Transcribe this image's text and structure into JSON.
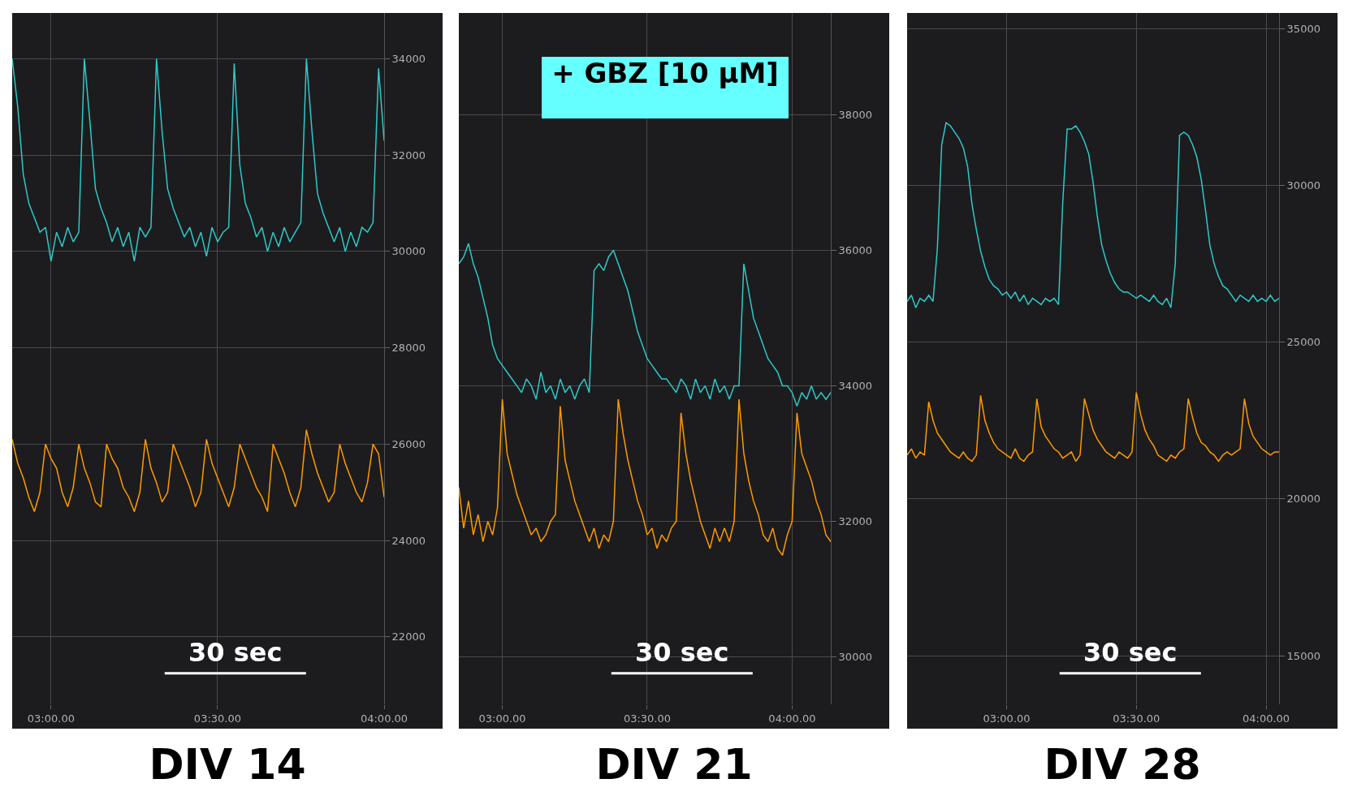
{
  "chart_data": [
    {
      "type": "line",
      "title": "DIV 14",
      "annotations": [
        "30 sec"
      ],
      "categories": [
        null,
        null,
        null,
        null,
        null,
        null,
        null,
        "03:00.00",
        null,
        null,
        null,
        null,
        null,
        null,
        null,
        null,
        null,
        null,
        null,
        null,
        null,
        null,
        null,
        null,
        null,
        null,
        null,
        null,
        null,
        null,
        null,
        null,
        null,
        null,
        null,
        null,
        null,
        "03:30.00",
        null,
        null,
        null,
        null,
        null,
        null,
        null,
        null,
        null,
        null,
        null,
        null,
        null,
        null,
        null,
        null,
        null,
        null,
        null,
        null,
        null,
        null,
        null,
        null,
        null,
        null,
        null,
        null,
        null,
        "04:00.00"
      ],
      "ylim": [
        20600,
        34950
      ],
      "yticks": [
        22000,
        24000,
        26000,
        28000,
        30000,
        32000,
        34000
      ],
      "grid": true,
      "series": [
        {
          "color": "#2ec9c9",
          "values": [
            34000,
            33000,
            31600,
            31000,
            30700,
            30400,
            30500,
            29800,
            30400,
            30100,
            30500,
            30200,
            30400,
            34000,
            32700,
            31300,
            30900,
            30600,
            30200,
            30500,
            30100,
            30400,
            29800,
            30500,
            30300,
            30500,
            34000,
            32500,
            31300,
            30900,
            30600,
            30300,
            30500,
            30100,
            30400,
            29900,
            30500,
            30200,
            30400,
            30500,
            33900,
            31800,
            31000,
            30700,
            30300,
            30500,
            30000,
            30400,
            30100,
            30500,
            30200,
            30400,
            30600,
            34000,
            32500,
            31200,
            30800,
            30500,
            30200,
            30500,
            30000,
            30400,
            30100,
            30500,
            30400,
            30600,
            33800,
            32300
          ]
        },
        {
          "color": "#ff9a00",
          "values": [
            26100,
            25600,
            25300,
            24900,
            24600,
            25000,
            26000,
            25700,
            25500,
            25000,
            24700,
            25100,
            26000,
            25500,
            25200,
            24800,
            24700,
            26000,
            25700,
            25500,
            25100,
            24900,
            24600,
            25000,
            26100,
            25500,
            25200,
            24800,
            25000,
            26000,
            25700,
            25400,
            25100,
            24700,
            25000,
            26100,
            25600,
            25300,
            25000,
            24700,
            25100,
            26000,
            25700,
            25400,
            25100,
            24900,
            24600,
            26000,
            25700,
            25400,
            25000,
            24700,
            25100,
            26300,
            25800,
            25400,
            25100,
            24800,
            25000,
            26000,
            25600,
            25300,
            25000,
            24800,
            25200,
            26000,
            25800,
            24900
          ]
        }
      ]
    },
    {
      "type": "line",
      "title": "DIV 21",
      "annotations": [
        "30 sec",
        "+ GBZ [10 µM]"
      ],
      "categories": [
        null,
        null,
        null,
        null,
        null,
        null,
        null,
        null,
        null,
        "03:00.00",
        null,
        null,
        null,
        null,
        null,
        null,
        null,
        null,
        null,
        null,
        null,
        null,
        null,
        null,
        null,
        null,
        null,
        null,
        null,
        null,
        null,
        null,
        null,
        null,
        null,
        null,
        null,
        null,
        null,
        "03:30.00",
        null,
        null,
        null,
        null,
        null,
        null,
        null,
        null,
        null,
        null,
        null,
        null,
        null,
        null,
        null,
        null,
        null,
        null,
        null,
        null,
        null,
        null,
        null,
        null,
        null,
        null,
        null,
        null,
        null,
        "04:00.00",
        null,
        null,
        null,
        null,
        null,
        null,
        null,
        null
      ],
      "ylim": [
        29300,
        39500
      ],
      "yticks": [
        30000,
        32000,
        34000,
        36000,
        38000
      ],
      "grid": true,
      "series": [
        {
          "color": "#2ec9c9",
          "values": [
            35800,
            35900,
            36100,
            35800,
            35600,
            35300,
            35000,
            34600,
            34400,
            34300,
            34200,
            34100,
            34000,
            33900,
            34100,
            34000,
            33800,
            34200,
            33900,
            34000,
            33800,
            34100,
            33900,
            34000,
            33800,
            34000,
            34100,
            33900,
            35700,
            35800,
            35700,
            35900,
            36000,
            35800,
            35600,
            35400,
            35100,
            34800,
            34600,
            34400,
            34300,
            34200,
            34100,
            34100,
            34000,
            33900,
            34100,
            34000,
            33800,
            34100,
            33900,
            34000,
            33800,
            34100,
            33900,
            34000,
            33800,
            34000,
            34000,
            35800,
            35400,
            35000,
            34800,
            34600,
            34400,
            34300,
            34200,
            34000,
            34000,
            33900,
            33700,
            33900,
            33800,
            34000,
            33800,
            33900,
            33800,
            33900
          ]
        },
        {
          "color": "#ff9a00",
          "values": [
            32500,
            31900,
            32300,
            31800,
            32100,
            31700,
            32000,
            31800,
            32200,
            33800,
            33000,
            32700,
            32400,
            32200,
            32000,
            31800,
            31900,
            31700,
            31800,
            32000,
            32100,
            33700,
            32900,
            32600,
            32300,
            32100,
            31900,
            31700,
            31900,
            31600,
            31800,
            31700,
            32000,
            33800,
            33300,
            32900,
            32600,
            32300,
            32100,
            31800,
            31900,
            31600,
            31800,
            31700,
            31900,
            32000,
            33600,
            33000,
            32600,
            32300,
            32000,
            31800,
            31600,
            31900,
            31700,
            31900,
            31700,
            32000,
            33800,
            33000,
            32600,
            32300,
            32100,
            31800,
            31700,
            31900,
            31600,
            31500,
            31800,
            32000,
            33600,
            33000,
            32800,
            32600,
            32300,
            32100,
            31800,
            31700
          ]
        }
      ]
    },
    {
      "type": "line",
      "title": "DIV 28",
      "annotations": [
        "30 sec"
      ],
      "categories": [
        null,
        null,
        null,
        null,
        null,
        null,
        null,
        null,
        null,
        null,
        null,
        null,
        null,
        null,
        null,
        null,
        null,
        null,
        null,
        null,
        null,
        null,
        null,
        "03:00.00",
        null,
        null,
        null,
        null,
        null,
        null,
        null,
        null,
        null,
        null,
        null,
        null,
        null,
        null,
        null,
        null,
        null,
        null,
        null,
        null,
        null,
        null,
        null,
        null,
        null,
        null,
        null,
        null,
        null,
        "03:30.00",
        null,
        null,
        null,
        null,
        null,
        null,
        null,
        null,
        null,
        null,
        null,
        null,
        null,
        null,
        null,
        null,
        null,
        null,
        null,
        null,
        null,
        null,
        null,
        null,
        null,
        null,
        null,
        null,
        null,
        "04:00.00",
        null,
        null,
        null
      ],
      "ylim": [
        13450,
        35500
      ],
      "yticks": [
        15000,
        20000,
        25000,
        30000,
        35000
      ],
      "grid": true,
      "series": [
        {
          "color": "#2ec9c9",
          "values": [
            26300,
            26500,
            26100,
            26400,
            26300,
            26500,
            26300,
            28000,
            31300,
            32000,
            31900,
            31700,
            31500,
            31200,
            30600,
            29400,
            28600,
            27900,
            27400,
            27000,
            26800,
            26700,
            26500,
            26600,
            26400,
            26600,
            26300,
            26500,
            26200,
            26400,
            26300,
            26200,
            26400,
            26300,
            26400,
            26200,
            29500,
            31800,
            31800,
            31900,
            31700,
            31400,
            31000,
            30100,
            29000,
            28100,
            27600,
            27200,
            26900,
            26700,
            26600,
            26600,
            26500,
            26400,
            26500,
            26400,
            26300,
            26500,
            26300,
            26200,
            26400,
            26100,
            27500,
            31600,
            31700,
            31600,
            31300,
            30900,
            30200,
            29200,
            28100,
            27500,
            27100,
            26800,
            26700,
            26500,
            26300,
            26500,
            26400,
            26300,
            26500,
            26300,
            26400,
            26300,
            26500,
            26300,
            26400
          ]
        },
        {
          "color": "#ff9a00",
          "values": [
            21400,
            21600,
            21300,
            21500,
            21400,
            23100,
            22500,
            22100,
            21900,
            21700,
            21500,
            21400,
            21300,
            21500,
            21300,
            21200,
            21400,
            23300,
            22500,
            22100,
            21800,
            21600,
            21500,
            21400,
            21300,
            21600,
            21300,
            21200,
            21400,
            21500,
            23200,
            22300,
            22000,
            21800,
            21600,
            21500,
            21300,
            21400,
            21500,
            21200,
            21400,
            23200,
            22700,
            22200,
            21900,
            21700,
            21500,
            21400,
            21300,
            21500,
            21400,
            21300,
            21500,
            23400,
            22700,
            22200,
            21900,
            21700,
            21400,
            21300,
            21200,
            21400,
            21300,
            21500,
            21600,
            23200,
            22600,
            22100,
            21800,
            21700,
            21500,
            21400,
            21200,
            21400,
            21500,
            21400,
            21500,
            21600,
            23200,
            22400,
            22000,
            21800,
            21600,
            21500,
            21400,
            21500,
            21500
          ]
        }
      ]
    }
  ]
}
